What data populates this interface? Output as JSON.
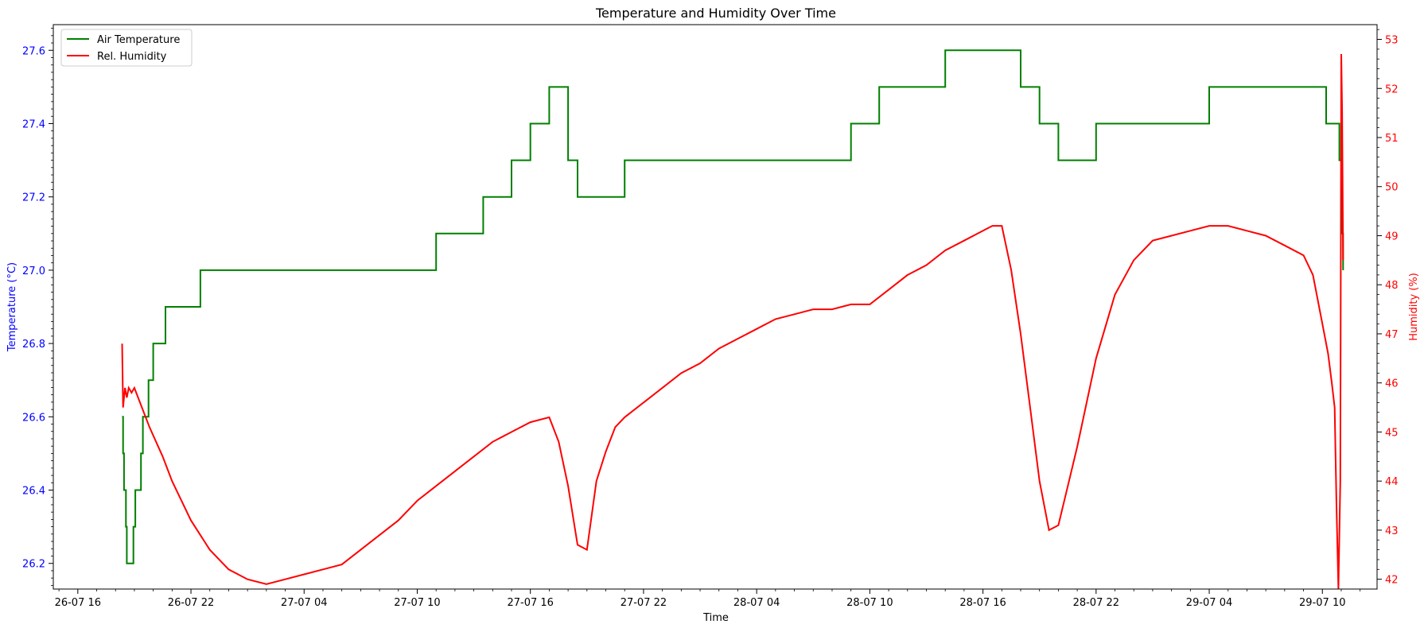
{
  "chart_data": {
    "type": "line",
    "title": "Temperature and Humidity Over Time",
    "xlabel": "Time",
    "ylabel_left": "Temperature (°C)",
    "ylabel_right": "Humidity (%)",
    "x_unit": "hours",
    "x_ticks": [
      {
        "t": 0,
        "label": "26-07 16"
      },
      {
        "t": 6,
        "label": "26-07 22"
      },
      {
        "t": 12,
        "label": "27-07 04"
      },
      {
        "t": 18,
        "label": "27-07 10"
      },
      {
        "t": 24,
        "label": "27-07 16"
      },
      {
        "t": 30,
        "label": "27-07 22"
      },
      {
        "t": 36,
        "label": "28-07 04"
      },
      {
        "t": 42,
        "label": "28-07 10"
      },
      {
        "t": 48,
        "label": "28-07 16"
      },
      {
        "t": 54,
        "label": "28-07 22"
      },
      {
        "t": 60,
        "label": "29-07 04"
      },
      {
        "t": 66,
        "label": "29-07 10"
      }
    ],
    "xlim": [
      -1.3,
      68.9
    ],
    "ylim_left": [
      26.13,
      27.67
    ],
    "ylim_right": [
      41.8,
      53.3
    ],
    "y_ticks_left": [
      "26.2",
      "26.4",
      "26.6",
      "26.8",
      "27.0",
      "27.2",
      "27.4",
      "27.6"
    ],
    "y_ticks_right": [
      "42",
      "43",
      "44",
      "45",
      "46",
      "47",
      "48",
      "49",
      "50",
      "51",
      "52",
      "53"
    ],
    "legend_position": "upper-left",
    "colors": {
      "temperature": "#008000",
      "humidity": "#ff0000",
      "left_axis_text": "#0000ff",
      "right_axis_text": "#ff0000"
    },
    "series": [
      {
        "name": "Air Temperature",
        "axis": "left",
        "x": [
          2.35,
          2.4,
          2.45,
          2.55,
          2.6,
          2.65,
          2.8,
          2.95,
          3.05,
          3.1,
          3.35,
          3.45,
          3.65,
          3.75,
          3.95,
          4.0,
          4.15,
          4.4,
          4.6,
          4.65,
          4.9,
          5.0,
          6.0,
          6.5,
          7.0,
          8.0,
          9.0,
          10.0,
          11.0,
          12.0,
          13.0,
          14.0,
          15.0,
          16.0,
          17.0,
          18.0,
          19.0,
          20.0,
          21.0,
          21.5,
          22.0,
          23.0,
          24.0,
          25.0,
          26.0,
          26.5,
          27.0,
          28.0,
          29.0,
          30.0,
          35.0,
          40.0,
          41.0,
          41.5,
          42.0,
          42.5,
          43.0,
          44.0,
          45.0,
          46.0,
          47.0,
          48.0,
          49.0,
          50.0,
          51.0,
          52.0,
          53.0,
          54.0,
          55.0,
          60.0,
          65.0,
          66.2,
          66.5,
          66.9,
          67.0,
          67.05,
          67.1
        ],
        "y": [
          26.6,
          26.5,
          26.4,
          26.3,
          26.2,
          26.2,
          26.2,
          26.3,
          26.4,
          26.4,
          26.5,
          26.6,
          26.6,
          26.7,
          26.7,
          26.8,
          26.8,
          26.8,
          26.8,
          26.9,
          26.9,
          26.9,
          26.9,
          27.0,
          27.0,
          27.0,
          27.0,
          27.0,
          27.0,
          27.0,
          27.0,
          27.0,
          27.0,
          27.0,
          27.0,
          27.0,
          27.1,
          27.1,
          27.1,
          27.2,
          27.2,
          27.3,
          27.4,
          27.5,
          27.3,
          27.2,
          27.2,
          27.2,
          27.3,
          27.3,
          27.3,
          27.3,
          27.4,
          27.4,
          27.4,
          27.5,
          27.5,
          27.5,
          27.5,
          27.6,
          27.6,
          27.6,
          27.6,
          27.5,
          27.4,
          27.3,
          27.3,
          27.4,
          27.4,
          27.5,
          27.5,
          27.4,
          27.4,
          27.3,
          27.2,
          27.1,
          27.0
        ]
      },
      {
        "name": "Rel. Humidity",
        "axis": "right",
        "x": [
          2.35,
          2.4,
          2.5,
          2.6,
          2.7,
          2.85,
          3.0,
          3.3,
          3.8,
          4.5,
          5.0,
          6.0,
          7.0,
          8.0,
          9.0,
          10.0,
          11.0,
          12.0,
          13.0,
          14.0,
          15.0,
          16.0,
          17.0,
          18.0,
          19.0,
          20.0,
          21.0,
          22.0,
          23.0,
          24.0,
          25.0,
          25.5,
          26.0,
          26.5,
          27.0,
          27.5,
          28.0,
          28.5,
          29.0,
          30.0,
          31.0,
          32.0,
          33.0,
          34.0,
          35.0,
          36.0,
          37.0,
          38.0,
          39.0,
          40.0,
          41.0,
          42.0,
          43.0,
          44.0,
          45.0,
          46.0,
          47.0,
          48.0,
          48.5,
          49.0,
          49.5,
          50.0,
          50.5,
          51.0,
          51.5,
          52.0,
          52.5,
          53.0,
          54.0,
          55.0,
          56.0,
          57.0,
          58.0,
          59.0,
          60.0,
          61.0,
          62.0,
          63.0,
          64.0,
          65.0,
          65.5,
          66.0,
          66.3,
          66.5,
          66.65,
          66.75,
          66.85,
          66.95,
          67.0,
          67.05,
          67.1
        ],
        "y": [
          46.8,
          45.5,
          45.9,
          45.7,
          45.9,
          45.8,
          45.9,
          45.6,
          45.1,
          44.5,
          44.0,
          43.2,
          42.6,
          42.2,
          42.0,
          41.9,
          42.0,
          42.1,
          42.2,
          42.3,
          42.6,
          42.9,
          43.2,
          43.6,
          43.9,
          44.2,
          44.5,
          44.8,
          45.0,
          45.2,
          45.3,
          44.8,
          43.9,
          42.7,
          42.6,
          44.0,
          44.6,
          45.1,
          45.3,
          45.6,
          45.9,
          46.2,
          46.4,
          46.7,
          46.9,
          47.1,
          47.3,
          47.4,
          47.5,
          47.5,
          47.6,
          47.6,
          47.9,
          48.2,
          48.4,
          48.7,
          48.9,
          49.1,
          49.2,
          49.2,
          48.3,
          47.0,
          45.5,
          44.0,
          43.0,
          43.1,
          43.9,
          44.7,
          46.5,
          47.8,
          48.5,
          48.9,
          49.0,
          49.1,
          49.2,
          49.2,
          49.1,
          49.0,
          48.8,
          48.6,
          48.2,
          47.2,
          46.6,
          46.0,
          45.5,
          43.5,
          41.8,
          44.0,
          52.7,
          51.5,
          48.5
        ]
      }
    ]
  }
}
